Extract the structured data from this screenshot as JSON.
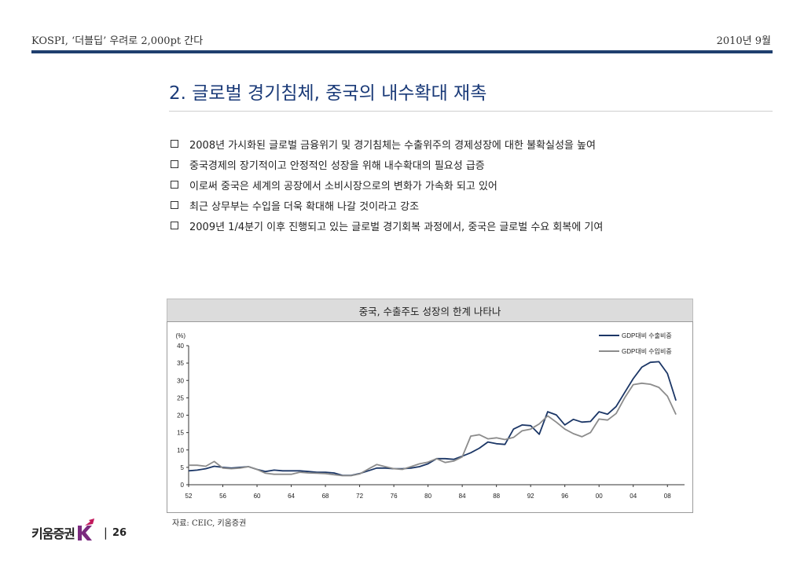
{
  "header": {
    "left_text": "KOSPI, ‘더블딥’ 우려로 2,000pt 간다",
    "right_text": "2010년 9월"
  },
  "page_title": "2. 글로벌 경기침체, 중국의 내수확대 재촉",
  "bullets": [
    "2008년 가시화된 글로벌 금융위기 및 경기침체는 수출위주의 경제성장에 대한 불확실성을 높여",
    "중국경제의 장기적이고 안정적인 성장을 위해 내수확대의 필요성 급증",
    "이로써 중국은 세계의 공장에서 소비시장으로의 변화가 가속화 되고 있어",
    "최근 상무부는 수입을 더욱 확대해 나갈 것이라고 강조",
    "2009년 1/4분기 이후 진행되고 있는 글로벌 경기회복 과정에서, 중국은 글로벌 수요 회복에 기여"
  ],
  "chart_data": {
    "type": "line",
    "title": "중국, 수출주도 성장의 한계 나타나",
    "ylabel": "(%)",
    "ylim": [
      0,
      40
    ],
    "yticks": [
      0,
      5,
      10,
      15,
      20,
      25,
      30,
      35,
      40
    ],
    "xlim": [
      1952,
      2010
    ],
    "xticks": [
      "52",
      "56",
      "60",
      "64",
      "68",
      "72",
      "76",
      "80",
      "84",
      "88",
      "92",
      "96",
      "00",
      "04",
      "08"
    ],
    "legend_position": "top-right",
    "grid": false,
    "x": [
      1952,
      1953,
      1954,
      1955,
      1956,
      1957,
      1958,
      1959,
      1960,
      1961,
      1962,
      1963,
      1964,
      1965,
      1966,
      1967,
      1968,
      1969,
      1970,
      1971,
      1972,
      1973,
      1974,
      1975,
      1976,
      1977,
      1978,
      1979,
      1980,
      1981,
      1982,
      1983,
      1984,
      1985,
      1986,
      1987,
      1988,
      1989,
      1990,
      1991,
      1992,
      1993,
      1994,
      1995,
      1996,
      1997,
      1998,
      1999,
      2000,
      2001,
      2002,
      2003,
      2004,
      2005,
      2006,
      2007,
      2008,
      2009
    ],
    "series": [
      {
        "name": "GDP대비 수출비중",
        "color": "#1b3666",
        "values": [
          4.0,
          4.2,
          4.6,
          5.3,
          5.0,
          4.8,
          5.0,
          5.2,
          4.4,
          3.8,
          4.2,
          4.0,
          4.0,
          4.0,
          3.8,
          3.6,
          3.6,
          3.4,
          2.7,
          2.7,
          3.2,
          4.0,
          4.8,
          4.8,
          4.6,
          4.6,
          4.8,
          5.2,
          6.0,
          7.5,
          7.5,
          7.3,
          8.2,
          9.2,
          10.5,
          12.3,
          11.8,
          11.6,
          16.0,
          17.2,
          17.0,
          14.5,
          21.0,
          20.1,
          17.2,
          18.8,
          18.0,
          18.2,
          21.0,
          20.3,
          22.5,
          26.5,
          30.5,
          33.8,
          35.2,
          35.4,
          32.0,
          24.2
        ]
      },
      {
        "name": "GDP대비 수입비중",
        "color": "#8c8c8c",
        "values": [
          5.6,
          5.6,
          5.3,
          6.7,
          4.8,
          4.6,
          4.8,
          5.2,
          4.4,
          3.3,
          3.0,
          3.0,
          3.0,
          3.6,
          3.4,
          3.3,
          3.2,
          2.9,
          2.6,
          2.6,
          3.1,
          4.5,
          5.8,
          5.2,
          4.6,
          4.4,
          5.2,
          6.0,
          6.5,
          7.5,
          6.4,
          6.8,
          8.0,
          14.0,
          14.4,
          13.2,
          13.5,
          13.0,
          13.6,
          15.5,
          16.0,
          17.5,
          19.8,
          18.0,
          16.0,
          14.7,
          13.8,
          15.0,
          18.9,
          18.6,
          20.5,
          25.0,
          28.8,
          29.2,
          28.9,
          28.0,
          25.5,
          20.2
        ]
      }
    ]
  },
  "source": "자료: CEIC, 키움증권",
  "footer": {
    "logo_text": "키움증권",
    "separator": "|",
    "page_number": "26"
  }
}
